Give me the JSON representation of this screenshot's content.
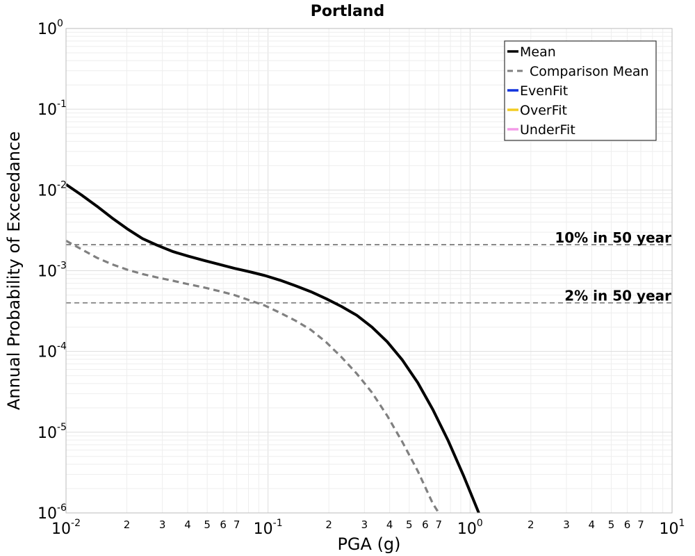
{
  "chart_data": {
    "type": "line",
    "title": "Portland",
    "xlabel": "PGA (g)",
    "ylabel": "Annual Probability of Exceedance",
    "x_scale": "log",
    "y_scale": "log",
    "xlim": [
      0.01,
      10
    ],
    "ylim": [
      1e-06,
      1
    ],
    "grid": true,
    "legend_position": "top-right",
    "x_major_ticks": [
      {
        "value": 0.01,
        "base": "10",
        "exp": "-2"
      },
      {
        "value": 0.1,
        "base": "10",
        "exp": "-1"
      },
      {
        "value": 1,
        "base": "10",
        "exp": "0"
      },
      {
        "value": 10,
        "base": "10",
        "exp": "1"
      }
    ],
    "x_minor_ticks": [
      {
        "value": 0.02,
        "label": "2"
      },
      {
        "value": 0.03,
        "label": "3"
      },
      {
        "value": 0.04,
        "label": "4"
      },
      {
        "value": 0.05,
        "label": "5"
      },
      {
        "value": 0.06,
        "label": "6"
      },
      {
        "value": 0.07,
        "label": "7"
      },
      {
        "value": 0.2,
        "label": "2"
      },
      {
        "value": 0.3,
        "label": "3"
      },
      {
        "value": 0.4,
        "label": "4"
      },
      {
        "value": 0.5,
        "label": "5"
      },
      {
        "value": 0.6,
        "label": "6"
      },
      {
        "value": 0.7,
        "label": "7"
      },
      {
        "value": 2,
        "label": "2"
      },
      {
        "value": 3,
        "label": "3"
      },
      {
        "value": 4,
        "label": "4"
      },
      {
        "value": 5,
        "label": "5"
      },
      {
        "value": 6,
        "label": "6"
      },
      {
        "value": 7,
        "label": "7"
      }
    ],
    "y_major_ticks": [
      {
        "value": 1,
        "base": "10",
        "exp": "0"
      },
      {
        "value": 0.1,
        "base": "10",
        "exp": "-1"
      },
      {
        "value": 0.01,
        "base": "10",
        "exp": "-2"
      },
      {
        "value": 0.001,
        "base": "10",
        "exp": "-3"
      },
      {
        "value": 0.0001,
        "base": "10",
        "exp": "-4"
      },
      {
        "value": 1e-05,
        "base": "10",
        "exp": "-5"
      },
      {
        "value": 1e-06,
        "base": "10",
        "exp": "-6"
      }
    ],
    "reference_lines": [
      {
        "label": "10% in 50 year",
        "y": 0.0021
      },
      {
        "label": "2% in 50 year",
        "y": 0.0004
      }
    ],
    "series": [
      {
        "name": "Mean",
        "color": "#000000",
        "dash": "solid",
        "points": [
          [
            0.01,
            0.0117
          ],
          [
            0.0119,
            0.0087
          ],
          [
            0.0142,
            0.0063
          ],
          [
            0.0169,
            0.0045
          ],
          [
            0.0201,
            0.0033
          ],
          [
            0.0239,
            0.0025
          ],
          [
            0.0285,
            0.00205
          ],
          [
            0.0339,
            0.00172
          ],
          [
            0.0404,
            0.00151
          ],
          [
            0.0481,
            0.00134
          ],
          [
            0.0572,
            0.0012
          ],
          [
            0.0681,
            0.00107
          ],
          [
            0.081,
            0.00097
          ],
          [
            0.0965,
            0.00087
          ],
          [
            0.115,
            0.00076
          ],
          [
            0.137,
            0.00065
          ],
          [
            0.163,
            0.00055
          ],
          [
            0.194,
            0.00045
          ],
          [
            0.231,
            0.00036
          ],
          [
            0.275,
            0.00028
          ],
          [
            0.327,
            0.0002
          ],
          [
            0.389,
            0.000132
          ],
          [
            0.463,
            7.8e-05
          ],
          [
            0.551,
            4.1e-05
          ],
          [
            0.655,
            1.9e-05
          ],
          [
            0.78,
            7.8e-06
          ],
          [
            0.928,
            2.9e-06
          ],
          [
            1.105,
            1e-06
          ]
        ]
      },
      {
        "name": "Comparison Mean",
        "color": "#808080",
        "dash": "dashed",
        "points": [
          [
            0.01,
            0.00235
          ],
          [
            0.0119,
            0.00185
          ],
          [
            0.0142,
            0.00145
          ],
          [
            0.0169,
            0.0012
          ],
          [
            0.0201,
            0.00103
          ],
          [
            0.0239,
            0.00091
          ],
          [
            0.0285,
            0.00082
          ],
          [
            0.0339,
            0.00075
          ],
          [
            0.0404,
            0.00068
          ],
          [
            0.0481,
            0.00062
          ],
          [
            0.0572,
            0.00056
          ],
          [
            0.0681,
            0.0005
          ],
          [
            0.081,
            0.00043
          ],
          [
            0.0965,
            0.00037
          ],
          [
            0.115,
            0.0003
          ],
          [
            0.137,
            0.00024
          ],
          [
            0.163,
            0.000185
          ],
          [
            0.194,
            0.00013
          ],
          [
            0.231,
            8.5e-05
          ],
          [
            0.275,
            5.3e-05
          ],
          [
            0.327,
            3.1e-05
          ],
          [
            0.389,
            1.6e-05
          ],
          [
            0.463,
            7.5e-06
          ],
          [
            0.551,
            3.3e-06
          ],
          [
            0.655,
            1.3e-06
          ],
          [
            0.7,
            1e-06
          ]
        ]
      },
      {
        "name": "EvenFit",
        "color": "#1133dd",
        "dash": "solid",
        "points": []
      },
      {
        "name": "OverFit",
        "color": "#f2cc22",
        "dash": "solid",
        "points": []
      },
      {
        "name": "UnderFit",
        "color": "#f39be8",
        "dash": "solid",
        "points": []
      }
    ]
  }
}
